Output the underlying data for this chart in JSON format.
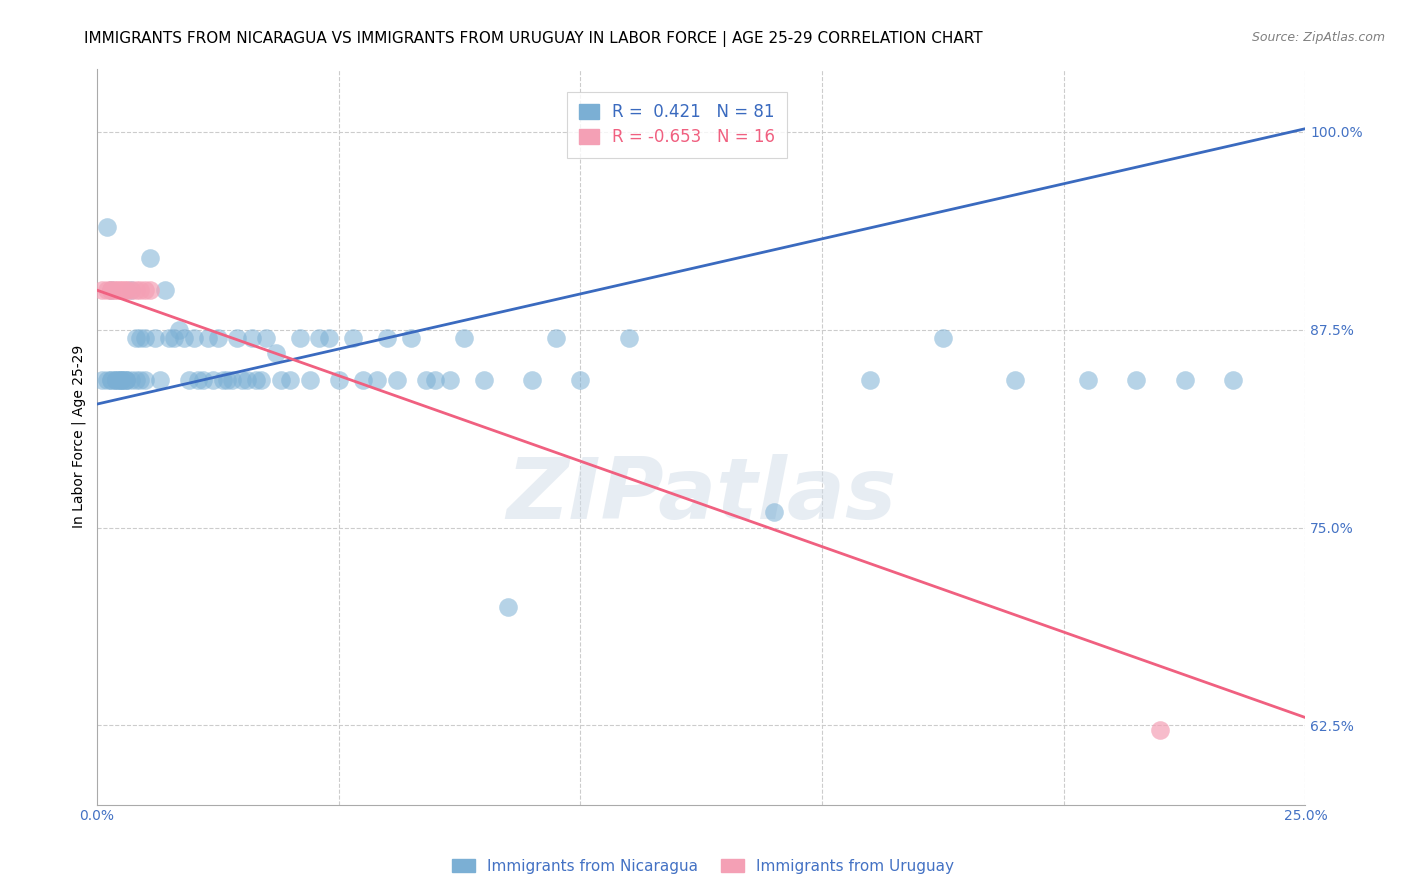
{
  "title": "IMMIGRANTS FROM NICARAGUA VS IMMIGRANTS FROM URUGUAY IN LABOR FORCE | AGE 25-29 CORRELATION CHART",
  "source": "Source: ZipAtlas.com",
  "ylabel": "In Labor Force | Age 25-29",
  "xlim": [
    0.0,
    0.25
  ],
  "ylim": [
    0.575,
    1.04
  ],
  "xticks": [
    0.0,
    0.05,
    0.1,
    0.15,
    0.2,
    0.25
  ],
  "xticklabels": [
    "0.0%",
    "",
    "",
    "",
    "",
    "25.0%"
  ],
  "yticks": [
    0.625,
    0.75,
    0.875,
    1.0
  ],
  "yticklabels": [
    "62.5%",
    "75.0%",
    "87.5%",
    "100.0%"
  ],
  "nicaragua_color": "#7bafd4",
  "uruguay_color": "#f4a0b5",
  "nicaragua_line_color": "#3a6abf",
  "uruguay_line_color": "#f06080",
  "R_nicaragua": 0.421,
  "N_nicaragua": 81,
  "R_uruguay": -0.653,
  "N_uruguay": 16,
  "watermark": "ZIPatlas",
  "nicaragua_x": [
    0.001,
    0.002,
    0.002,
    0.003,
    0.003,
    0.003,
    0.004,
    0.004,
    0.004,
    0.005,
    0.005,
    0.005,
    0.005,
    0.006,
    0.006,
    0.006,
    0.007,
    0.007,
    0.008,
    0.008,
    0.009,
    0.009,
    0.01,
    0.01,
    0.011,
    0.012,
    0.013,
    0.014,
    0.015,
    0.016,
    0.017,
    0.018,
    0.019,
    0.02,
    0.021,
    0.022,
    0.023,
    0.024,
    0.025,
    0.026,
    0.027,
    0.028,
    0.029,
    0.03,
    0.031,
    0.032,
    0.033,
    0.034,
    0.035,
    0.037,
    0.038,
    0.04,
    0.042,
    0.044,
    0.046,
    0.048,
    0.05,
    0.053,
    0.055,
    0.058,
    0.06,
    0.062,
    0.065,
    0.068,
    0.07,
    0.073,
    0.076,
    0.08,
    0.085,
    0.09,
    0.095,
    0.1,
    0.11,
    0.14,
    0.16,
    0.175,
    0.19,
    0.205,
    0.215,
    0.225,
    0.235
  ],
  "nicaragua_y": [
    0.843,
    0.843,
    0.94,
    0.843,
    0.9,
    0.843,
    0.843,
    0.843,
    0.843,
    0.843,
    0.843,
    0.843,
    0.843,
    0.843,
    0.843,
    0.843,
    0.9,
    0.843,
    0.87,
    0.843,
    0.87,
    0.843,
    0.87,
    0.843,
    0.92,
    0.87,
    0.843,
    0.9,
    0.87,
    0.87,
    0.875,
    0.87,
    0.843,
    0.87,
    0.843,
    0.843,
    0.87,
    0.843,
    0.87,
    0.843,
    0.843,
    0.843,
    0.87,
    0.843,
    0.843,
    0.87,
    0.843,
    0.843,
    0.87,
    0.86,
    0.843,
    0.843,
    0.87,
    0.843,
    0.87,
    0.87,
    0.843,
    0.87,
    0.843,
    0.843,
    0.87,
    0.843,
    0.87,
    0.843,
    0.843,
    0.843,
    0.87,
    0.843,
    0.7,
    0.843,
    0.87,
    0.843,
    0.87,
    0.76,
    0.843,
    0.87,
    0.843,
    0.843,
    0.843,
    0.843,
    0.843
  ],
  "uruguay_x": [
    0.001,
    0.002,
    0.003,
    0.003,
    0.004,
    0.004,
    0.005,
    0.005,
    0.006,
    0.006,
    0.007,
    0.008,
    0.009,
    0.01,
    0.011,
    0.22
  ],
  "uruguay_y": [
    0.9,
    0.9,
    0.9,
    0.9,
    0.9,
    0.9,
    0.9,
    0.9,
    0.9,
    0.9,
    0.9,
    0.9,
    0.9,
    0.9,
    0.9,
    0.622
  ],
  "nic_trendline_x": [
    0.0,
    0.25
  ],
  "nic_trendline_y": [
    0.828,
    1.002
  ],
  "uru_trendline_x": [
    0.0,
    0.25
  ],
  "uru_trendline_y": [
    0.9,
    0.63
  ],
  "grid_color": "#cccccc",
  "background_color": "white",
  "title_fontsize": 11,
  "axis_label_fontsize": 10,
  "tick_fontsize": 10,
  "legend_fontsize": 12
}
